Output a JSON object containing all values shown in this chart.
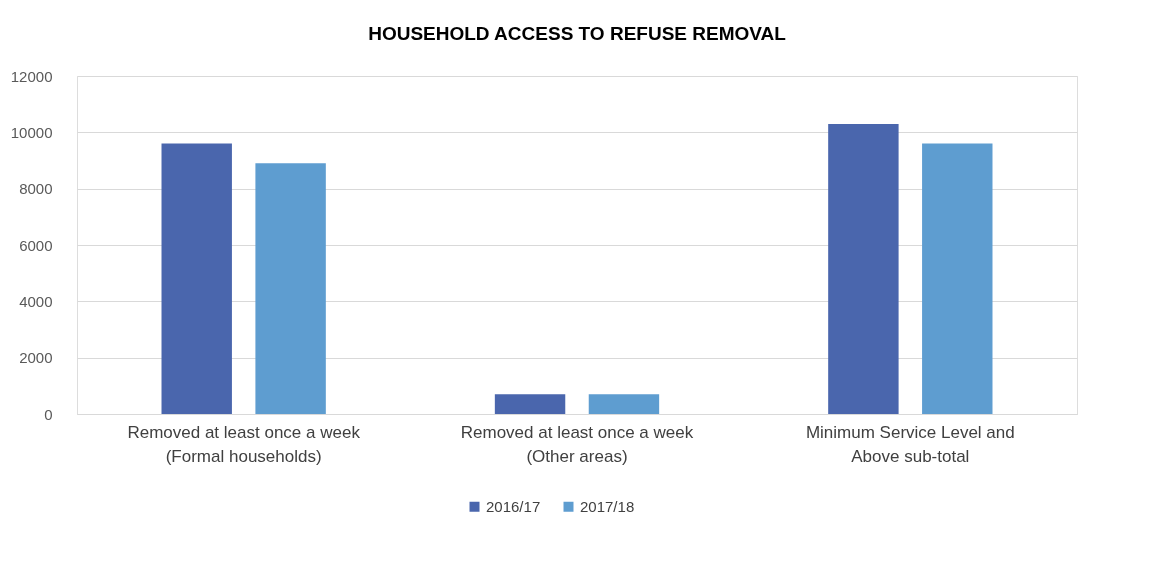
{
  "chart_data": {
    "type": "bar",
    "title": "HOUSEHOLD ACCESS TO REFUSE REMOVAL",
    "categories": [
      "Removed at least once a week\n(Formal households)",
      "Removed at least once a week\n(Other areas)",
      "Minimum Service Level and\nAbove sub-total"
    ],
    "series": [
      {
        "name": "2016/17",
        "color": "#4a66ad",
        "values": [
          9600,
          700,
          10300
        ]
      },
      {
        "name": "2017/18",
        "color": "#5e9dd0",
        "values": [
          8900,
          700,
          9600
        ]
      }
    ],
    "ylim": [
      0,
      12000
    ],
    "yticks": [
      0,
      2000,
      4000,
      6000,
      8000,
      10000,
      12000
    ],
    "grid": "y",
    "legend": "bottom"
  }
}
